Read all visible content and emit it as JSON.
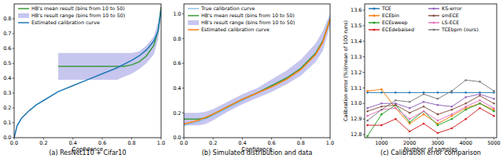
{
  "chart_data": [
    {
      "type": "line",
      "title": "(a) ResNet110 + Cifar10",
      "x_label": "Confidence",
      "xlim": [
        0,
        1
      ],
      "ylim": [
        0,
        0.9
      ],
      "xticks": [
        {
          "value": 0,
          "label": "0.0"
        },
        0.2,
        0.4,
        0.6,
        0.8,
        {
          "value": 1,
          "label": "1.0"
        }
      ],
      "yticks": [
        {
          "value": 0,
          "label": "0.0"
        },
        0.1,
        0.2,
        0.3,
        0.4,
        0.5,
        0.6,
        0.7,
        0.8
      ],
      "legend": "upper left",
      "grid": false,
      "series": [
        {
          "name": "HB's mean result (bins from 10 to 50)",
          "type": "line",
          "color": "#3a9a3a",
          "x": [
            0.3,
            0.4,
            0.5,
            0.6,
            0.7,
            0.75,
            0.8,
            0.85,
            0.9,
            0.95,
            0.98,
            1.0
          ],
          "values": [
            0.48,
            0.48,
            0.48,
            0.48,
            0.48,
            0.48,
            0.49,
            0.51,
            0.55,
            0.62,
            0.72,
            0.88
          ]
        },
        {
          "name": "HB's result range (bins from 10 to 50)",
          "type": "area",
          "color": "#b3b3ea",
          "x": [
            0.3,
            0.4,
            0.5,
            0.6,
            0.7,
            0.75,
            0.8,
            0.85,
            0.9,
            0.95,
            0.98,
            1.0
          ],
          "values": [
            0.57,
            0.57,
            0.57,
            0.57,
            0.57,
            0.57,
            0.57,
            0.58,
            0.62,
            0.68,
            0.78,
            0.9
          ],
          "lower": [
            0.39,
            0.39,
            0.39,
            0.39,
            0.39,
            0.41,
            0.43,
            0.46,
            0.5,
            0.56,
            0.66,
            0.84
          ]
        },
        {
          "name": "Estimated calibration curve",
          "type": "line",
          "color": "#1f77b4",
          "x": [
            0,
            0.02,
            0.05,
            0.1,
            0.15,
            0.2,
            0.3,
            0.4,
            0.5,
            0.6,
            0.7,
            0.8,
            0.85,
            0.9,
            0.95,
            0.98,
            1.0
          ],
          "values": [
            0,
            0.08,
            0.13,
            0.18,
            0.22,
            0.25,
            0.31,
            0.35,
            0.39,
            0.43,
            0.47,
            0.52,
            0.55,
            0.59,
            0.65,
            0.72,
            0.86
          ]
        }
      ]
    },
    {
      "type": "line",
      "title": "(b) Simulated distribution and data",
      "x_label": "Confidence",
      "xlim": [
        0,
        1
      ],
      "ylim": [
        0,
        1.08
      ],
      "xticks": [
        {
          "value": 0,
          "label": "0.0"
        },
        0.2,
        0.4,
        0.6,
        0.8,
        {
          "value": 1,
          "label": "1.0"
        }
      ],
      "yticks": [
        {
          "value": 0,
          "label": "0.0"
        },
        0.2,
        0.4,
        0.6,
        0.8,
        {
          "value": 1,
          "label": "1.0"
        }
      ],
      "legend": "upper left",
      "grid": false,
      "series": [
        {
          "name": "True calibration curve",
          "type": "line",
          "color": "#8fc0e4",
          "x": [
            0,
            0.1,
            0.2,
            0.3,
            0.4,
            0.5,
            0.6,
            0.7,
            0.8,
            0.9,
            0.95,
            1.0
          ],
          "values": [
            0.1,
            0.13,
            0.18,
            0.24,
            0.3,
            0.36,
            0.42,
            0.48,
            0.56,
            0.68,
            0.78,
            0.98
          ]
        },
        {
          "name": "HB's mean result (bins from 10 to 50)",
          "type": "line",
          "color": "#3a9a3a",
          "x": [
            0,
            0.05,
            0.1,
            0.15,
            0.2,
            0.3,
            0.4,
            0.5,
            0.6,
            0.7,
            0.8,
            0.9,
            0.95,
            1.0
          ],
          "values": [
            0.15,
            0.15,
            0.15,
            0.16,
            0.19,
            0.25,
            0.31,
            0.36,
            0.42,
            0.48,
            0.56,
            0.68,
            0.78,
            0.95
          ]
        },
        {
          "name": "HB's result range (bins from 10 to 50)",
          "type": "area",
          "color": "#b3b3ea",
          "x": [
            0,
            0.05,
            0.1,
            0.15,
            0.2,
            0.3,
            0.4,
            0.5,
            0.6,
            0.7,
            0.8,
            0.9,
            0.95,
            1.0
          ],
          "values": [
            0.2,
            0.2,
            0.2,
            0.21,
            0.23,
            0.29,
            0.35,
            0.4,
            0.47,
            0.54,
            0.63,
            0.76,
            0.86,
            1.0
          ],
          "lower": [
            0.1,
            0.1,
            0.1,
            0.11,
            0.14,
            0.21,
            0.27,
            0.32,
            0.37,
            0.43,
            0.5,
            0.61,
            0.7,
            0.9
          ]
        },
        {
          "name": "Estimated calibration curve",
          "type": "line",
          "color": "#ff7f0e",
          "x": [
            0,
            0.1,
            0.2,
            0.3,
            0.4,
            0.5,
            0.6,
            0.7,
            0.8,
            0.9,
            0.95,
            1.0
          ],
          "values": [
            0.11,
            0.14,
            0.19,
            0.25,
            0.31,
            0.36,
            0.41,
            0.47,
            0.55,
            0.67,
            0.77,
            0.96
          ]
        }
      ]
    },
    {
      "type": "line",
      "title": "(c) Calibration error comparison",
      "x_label": "Number of samples",
      "y_label": "Calibration error (%)(mean of 100 runs)",
      "xlim": [
        400,
        5100
      ],
      "ylim": [
        12.78,
        13.64
      ],
      "xticks": [
        1000,
        2000,
        3000,
        4000,
        5000
      ],
      "yticks": [
        12.8,
        12.9,
        {
          "value": 13,
          "label": "13.0"
        },
        13.1,
        13.2,
        13.3,
        13.4,
        13.5,
        13.6
      ],
      "legend": "upper",
      "grid": false,
      "series": [
        {
          "name": "TCE",
          "color": "#1f77b4",
          "marker": "circle",
          "x": [
            500,
            1000,
            1500,
            2000,
            2500,
            3000,
            3500,
            4000,
            4500,
            5000
          ],
          "values": [
            13.07,
            13.07,
            13.07,
            13.07,
            13.07,
            13.07,
            13.07,
            13.07,
            13.07,
            13.07
          ]
        },
        {
          "name": "ECEbin",
          "color": "#ff7f0e",
          "marker": "circle",
          "x": [
            500,
            1000,
            1500,
            2000,
            2500,
            3000,
            3500,
            4000,
            4500,
            5000
          ],
          "values": [
            13.08,
            13.09,
            12.97,
            12.87,
            12.93,
            12.87,
            12.92,
            12.97,
            13.0,
            12.96
          ]
        },
        {
          "name": "ECEsweep",
          "color": "#2ca02c",
          "marker": "circle",
          "x": [
            500,
            1000,
            1500,
            2000,
            2500,
            3000,
            3500,
            4000,
            4500,
            5000
          ],
          "values": [
            12.79,
            12.93,
            12.99,
            12.88,
            12.95,
            12.86,
            12.9,
            12.96,
            13.0,
            12.95
          ]
        },
        {
          "name": "ECEdebaised",
          "color": "#d62728",
          "marker": "circle",
          "x": [
            500,
            1000,
            1500,
            2000,
            2500,
            3000,
            3500,
            4000,
            4500,
            5000
          ],
          "values": [
            12.86,
            12.86,
            12.9,
            12.82,
            12.87,
            12.81,
            12.84,
            12.9,
            12.97,
            12.92
          ]
        },
        {
          "name": "KS-error",
          "color": "#9467bd",
          "marker": "circle",
          "x": [
            500,
            1000,
            1500,
            2000,
            2500,
            3000,
            3500,
            4000,
            4500,
            5000
          ],
          "values": [
            12.97,
            13.0,
            13.0,
            12.97,
            13.01,
            12.99,
            12.98,
            13.04,
            13.06,
            13.03
          ]
        },
        {
          "name": "smECE",
          "color": "#8c564b",
          "marker": "circle",
          "x": [
            500,
            1000,
            1500,
            2000,
            2500,
            3000,
            3500,
            4000,
            4500,
            5000
          ],
          "values": [
            12.95,
            12.98,
            12.99,
            12.94,
            12.98,
            12.93,
            12.96,
            13.0,
            13.05,
            13.0
          ]
        },
        {
          "name": "LS-ECE",
          "color": "#e377c2",
          "marker": "circle",
          "x": [
            500,
            1000,
            1500,
            2000,
            2500,
            3000,
            3500,
            4000,
            4500,
            5000
          ],
          "values": [
            12.92,
            12.96,
            12.97,
            12.9,
            12.95,
            12.89,
            12.93,
            12.98,
            13.02,
            12.97
          ]
        },
        {
          "name": "TCEbpm (ours)",
          "color": "#7f7f7f",
          "marker": "circle",
          "x": [
            500,
            1000,
            1500,
            2000,
            2500,
            3000,
            3500,
            4000,
            4500,
            5000
          ],
          "values": [
            12.89,
            12.96,
            13.02,
            13.01,
            13.06,
            13.03,
            13.08,
            13.15,
            13.14,
            13.08
          ]
        }
      ]
    }
  ]
}
